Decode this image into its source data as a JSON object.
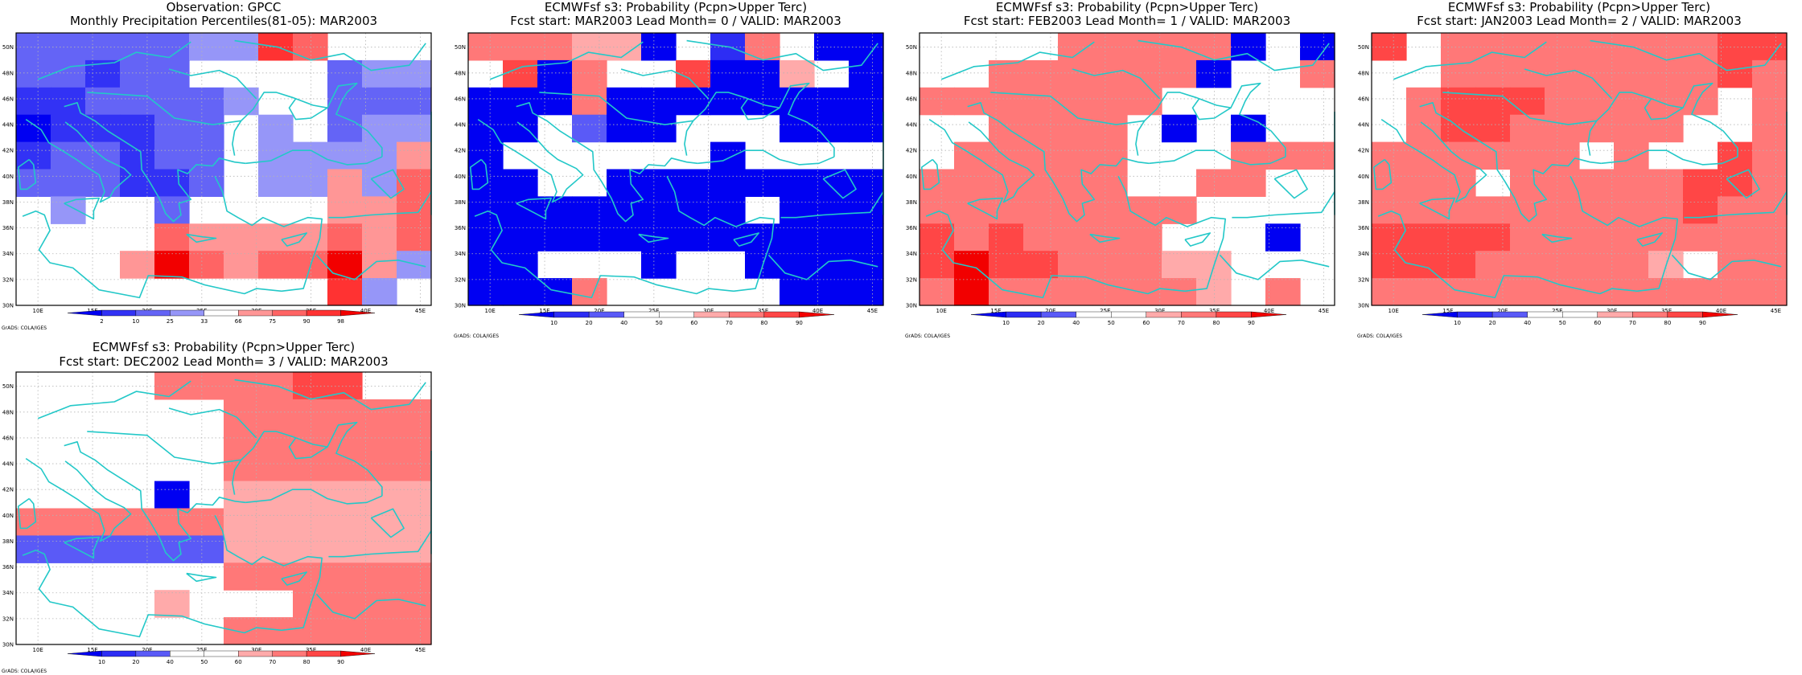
{
  "colors": {
    "coast": "#23c8c8",
    "grid": "#b4b4b4",
    "frame": "#000000",
    "white": "#ffffff"
  },
  "lat_ticks": [
    "50N",
    "48N",
    "46N",
    "44N",
    "42N",
    "40N",
    "38N",
    "36N",
    "34N",
    "32N",
    "30N"
  ],
  "lon_ticks": [
    "10E",
    "15E",
    "20E",
    "25E",
    "30E",
    "35E",
    "40E",
    "45E"
  ],
  "credit": "GrADS: COLA/IGES",
  "panels": [
    {
      "id": "obs",
      "title_line1": "Observation: GPCC",
      "title_line2": "Monthly Precipitation Percentiles(81-05): MAR2003",
      "colorbar_labels": [
        "2",
        "10",
        "25",
        "33",
        "66",
        "75",
        "90",
        "98"
      ],
      "palette": [
        "#0000f2",
        "#3232f5",
        "#6464f6",
        "#9696f8",
        "#ffffff",
        "#ff9696",
        "#ff6464",
        "#ff3232",
        "#f20000"
      ],
      "grid": [
        "222223376444",
        "221224444233",
        "112222344222",
        "011122434233",
        "122122433335",
        "222112433536",
        "434424444556",
        "444465555656",
        "444586566853",
        "444444444734"
      ]
    },
    {
      "id": "lead0",
      "title_line1": "ECMWFsf s3: Probability (Pcpn>Upper Terc)",
      "title_line2": "Fcst start: MAR2003  Lead Month= 0 / VALID: MAR2003",
      "colorbar_labels": [
        "10",
        "20",
        "40",
        "50",
        "60",
        "70",
        "80",
        "90"
      ],
      "palette": [
        "#0000f2",
        "#2d2df4",
        "#5a5af7",
        "#ffffff",
        "#ffffff",
        "#ffaaaa",
        "#ff7878",
        "#ff4646",
        "#f20000"
      ],
      "grid": [
        "666550416400",
        "470644700540",
        "000600000000",
        "004200444000",
        "044444404444",
        "004400000000",
        "000000004000",
        "000000000000",
        "004440440000",
        "000644444000"
      ]
    },
    {
      "id": "lead1",
      "title_line1": "ECMWFsf s3: Probability (Pcpn>Upper Terc)",
      "title_line2": "Fcst start: FEB2003  Lead Month= 1 / VALID: MAR2003",
      "colorbar_labels": [
        "10",
        "20",
        "40",
        "50",
        "60",
        "70",
        "80",
        "90"
      ],
      "palette": [
        "#0000f2",
        "#2d2df4",
        "#5a5af7",
        "#ffffff",
        "#ffffff",
        "#ffaaaa",
        "#ff7878",
        "#ff4646",
        "#f20000"
      ],
      "grid": [
        "444466666040",
        "446666660446",
        "666666644444",
        "446666404044",
        "466666444666",
        "666666446644",
        "666666664444",
        "767666644404",
        "787766655444",
        "686666665464"
      ]
    },
    {
      "id": "lead2",
      "title_line1": "ECMWFsf s3: Probability (Pcpn>Upper Terc)",
      "title_line2": "Fcst start: JAN2003  Lead Month= 2 / VALID: MAR2003",
      "colorbar_labels": [
        "10",
        "20",
        "40",
        "50",
        "60",
        "70",
        "80",
        "90"
      ],
      "palette": [
        "#0000f2",
        "#2d2df4",
        "#5a5af7",
        "#ffffff",
        "#ffffff",
        "#ffaaaa",
        "#ff7878",
        "#ff4646",
        "#f20000"
      ],
      "grid": [
        "746666666677",
        "446666666676",
        "467776666646",
        "467766666446",
        "666666464476",
        "666466666776",
        "666666666766",
        "777766666666",
        "777666665466",
        "666666666666"
      ]
    },
    {
      "id": "lead3",
      "title_line1": "ECMWFsf s3: Probability (Pcpn>Upper Terc)",
      "title_line2": "Fcst start: DEC2002  Lead Month= 3 / VALID: MAR2003",
      "colorbar_labels": [
        "10",
        "20",
        "40",
        "50",
        "60",
        "70",
        "80",
        "90"
      ],
      "palette": [
        "#0000f2",
        "#2d2df4",
        "#5a5af7",
        "#ffffff",
        "#ffffff",
        "#ffaaaa",
        "#ff7878",
        "#ff4646",
        "#f20000"
      ],
      "grid": [
        "444466667744",
        "444444666666",
        "444444666666",
        "444444666666",
        "444404555555",
        "666666555555",
        "222222555555",
        "444444666666",
        "444454446666",
        "444444666666"
      ]
    }
  ]
}
